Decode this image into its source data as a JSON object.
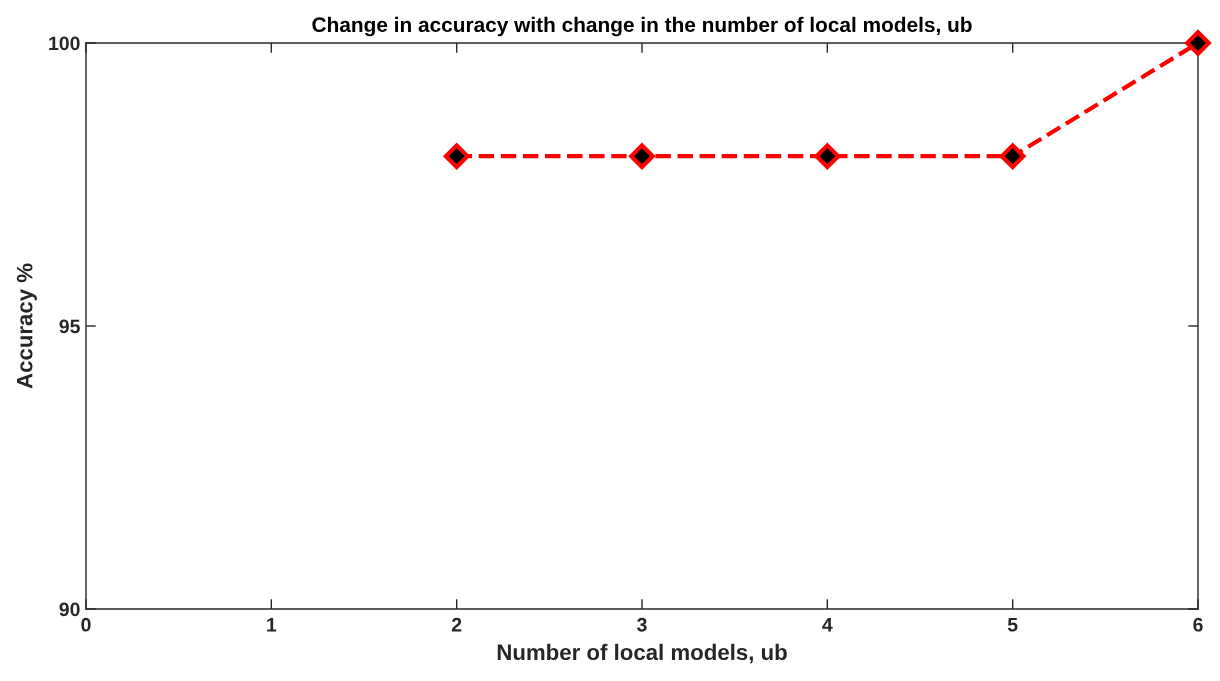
{
  "chart_data": {
    "type": "line",
    "title": "Change in accuracy with change in the number of local models, ub",
    "xlabel": "Number of local models, ub",
    "ylabel": "Accuracy %",
    "x": [
      2,
      3,
      4,
      5,
      6
    ],
    "series": [
      {
        "color": "#ff0000",
        "values": [
          98,
          98,
          98,
          98,
          100
        ]
      }
    ],
    "xlim": [
      0,
      6
    ],
    "xticks": [
      0,
      1,
      2,
      3,
      4,
      5,
      6
    ],
    "ylim": [
      90,
      100
    ],
    "yticks": [
      90,
      95,
      100
    ],
    "grid": false,
    "legend": false,
    "marker": "diamond",
    "line_style": "dashed"
  }
}
